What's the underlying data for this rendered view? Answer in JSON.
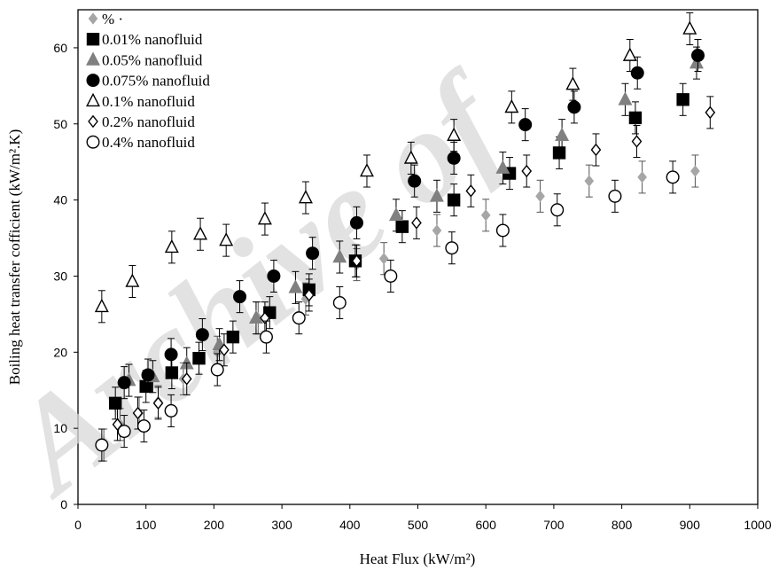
{
  "chart_data": {
    "type": "scatter",
    "title": "",
    "xlabel": "Heat Flux (kW/m²)",
    "ylabel": "Boiling heat transfer cofficient (kW/m².K)",
    "xlim": [
      0,
      1000
    ],
    "ylim": [
      0,
      65
    ],
    "xticks": [
      "0",
      "100",
      "200",
      "300",
      "400",
      "500",
      "600",
      "700",
      "800",
      "900",
      "1000"
    ],
    "yticks": [
      "0",
      "10",
      "20",
      "30",
      "40",
      "50",
      "60"
    ],
    "grid": false,
    "legend_position": "top-left",
    "error_bars": "± about 2 kW/m².K on every point",
    "watermark": "Archive of",
    "series": [
      {
        "name": "% ·",
        "marker": "diamond-filled",
        "color": "#a6a6a6",
        "points": [
          [
            38,
            7.8
          ],
          [
            62,
            10.5
          ],
          [
            90,
            12
          ],
          [
            118,
            13.5
          ],
          [
            155,
            16.5
          ],
          [
            205,
            20
          ],
          [
            265,
            24.5
          ],
          [
            335,
            27
          ],
          [
            410,
            31.5
          ],
          [
            450,
            32.3
          ],
          [
            528,
            36
          ],
          [
            600,
            38
          ],
          [
            680,
            40.5
          ],
          [
            752,
            42.5
          ],
          [
            830,
            43
          ],
          [
            908,
            43.8
          ]
        ]
      },
      {
        "name": "0.01% nanofluid",
        "marker": "square-filled",
        "color": "#000000",
        "points": [
          [
            55,
            13.3
          ],
          [
            100,
            15.5
          ],
          [
            138,
            17.3
          ],
          [
            178,
            19.2
          ],
          [
            228,
            22
          ],
          [
            282,
            25.2
          ],
          [
            340,
            28.2
          ],
          [
            408,
            32
          ],
          [
            477,
            36.5
          ],
          [
            553,
            40
          ],
          [
            635,
            43.5
          ],
          [
            708,
            46.2
          ],
          [
            820,
            50.8
          ],
          [
            890,
            53.2
          ]
        ]
      },
      {
        "name": "0.05% nanofluid",
        "marker": "triangle-filled",
        "color": "#808080",
        "points": [
          [
            75,
            16.3
          ],
          [
            110,
            16.8
          ],
          [
            160,
            18.5
          ],
          [
            208,
            21
          ],
          [
            262,
            24.5
          ],
          [
            320,
            28.5
          ],
          [
            385,
            32.5
          ],
          [
            468,
            38
          ],
          [
            528,
            40.5
          ],
          [
            625,
            44.2
          ],
          [
            712,
            48.5
          ],
          [
            805,
            53.2
          ],
          [
            910,
            58
          ]
        ]
      },
      {
        "name": "0.075% nanofluid",
        "marker": "circle-filled",
        "color": "#000000",
        "points": [
          [
            68,
            16
          ],
          [
            103,
            17
          ],
          [
            137,
            19.7
          ],
          [
            183,
            22.3
          ],
          [
            238,
            27.3
          ],
          [
            288,
            30
          ],
          [
            345,
            33
          ],
          [
            410,
            37
          ],
          [
            495,
            42.5
          ],
          [
            553,
            45.5
          ],
          [
            658,
            49.9
          ],
          [
            730,
            52.2
          ],
          [
            823,
            56.7
          ],
          [
            912,
            59
          ]
        ]
      },
      {
        "name": "0.1% nanofluid",
        "marker": "triangle-open",
        "color": "#000000",
        "points": [
          [
            35,
            26
          ],
          [
            80,
            29.3
          ],
          [
            138,
            33.8
          ],
          [
            180,
            35.5
          ],
          [
            218,
            34.7
          ],
          [
            275,
            37.5
          ],
          [
            335,
            40.3
          ],
          [
            425,
            43.8
          ],
          [
            490,
            45.5
          ],
          [
            553,
            48.5
          ],
          [
            638,
            52.2
          ],
          [
            728,
            55.2
          ],
          [
            812,
            59
          ],
          [
            900,
            62.5
          ]
        ]
      },
      {
        "name": "0.2% nanofluid",
        "marker": "diamond-open",
        "color": "#000000",
        "points": [
          [
            58,
            10.5
          ],
          [
            88,
            12
          ],
          [
            118,
            13.3
          ],
          [
            160,
            16.5
          ],
          [
            215,
            20.3
          ],
          [
            275,
            24.5
          ],
          [
            340,
            27.5
          ],
          [
            410,
            32
          ],
          [
            498,
            37
          ],
          [
            578,
            41.2
          ],
          [
            660,
            43.8
          ],
          [
            762,
            46.6
          ],
          [
            822,
            47.7
          ],
          [
            930,
            51.5
          ]
        ]
      },
      {
        "name": "0.4% nanofluid",
        "marker": "circle-open",
        "color": "#000000",
        "points": [
          [
            35,
            7.8
          ],
          [
            68,
            9.6
          ],
          [
            97,
            10.3
          ],
          [
            137,
            12.3
          ],
          [
            205,
            17.7
          ],
          [
            277,
            22
          ],
          [
            325,
            24.5
          ],
          [
            385,
            26.5
          ],
          [
            460,
            30
          ],
          [
            550,
            33.7
          ],
          [
            625,
            36
          ],
          [
            705,
            38.7
          ],
          [
            790,
            40.5
          ],
          [
            875,
            43
          ]
        ]
      }
    ]
  }
}
